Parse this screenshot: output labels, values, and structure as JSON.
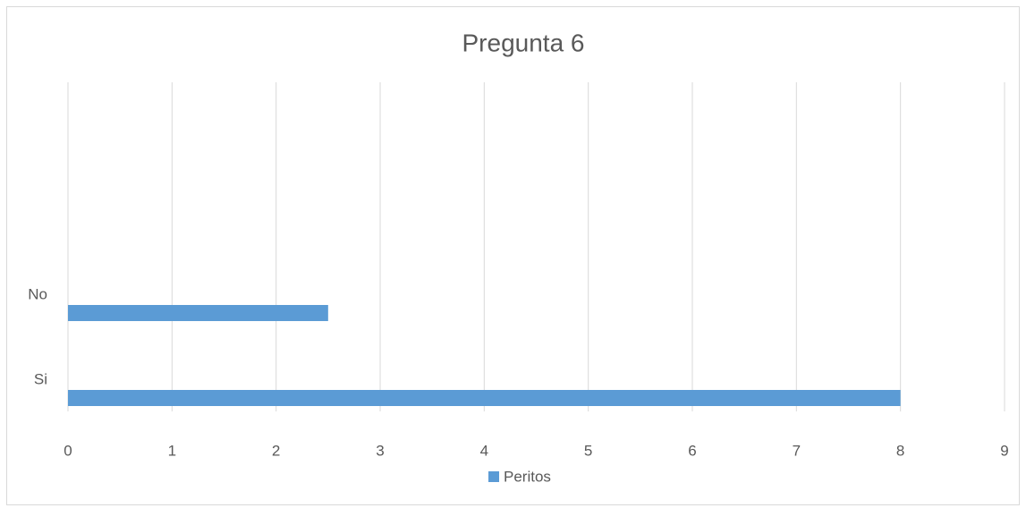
{
  "chart_data": {
    "type": "bar",
    "orientation": "horizontal",
    "title": "Pregunta 6",
    "categories": [
      "Si",
      "No"
    ],
    "series": [
      {
        "name": "Peritos",
        "color": "#5b9bd5",
        "values": [
          8,
          2.5
        ]
      }
    ],
    "xlim": [
      0,
      9
    ],
    "xticks": [
      0,
      1,
      2,
      3,
      4,
      5,
      6,
      7,
      8,
      9
    ],
    "grid": true,
    "legend": "bottom"
  }
}
